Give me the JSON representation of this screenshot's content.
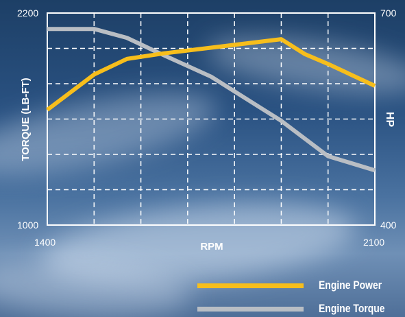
{
  "colors": {
    "power": "#f7be1c",
    "torque": "#b9bec4",
    "grid": "#ffffff",
    "sky_top": "#1d3f66"
  },
  "chart_data": {
    "type": "line",
    "title": "",
    "xlabel": "RPM",
    "ylabel": "TORQUE (LB-FT)",
    "y2label": "HP",
    "xlim": [
      1400,
      2100
    ],
    "ylim": [
      1000,
      2200
    ],
    "y2lim": [
      400,
      700
    ],
    "x_tick_labels": [
      "1400",
      "2100"
    ],
    "y_tick_labels": [
      "1000",
      "2200"
    ],
    "y2_tick_labels": [
      "400",
      "700"
    ],
    "grid": true,
    "legend_position": "bottom-right",
    "series": [
      {
        "name": "Engine Power",
        "axis": "right",
        "color": "#f7be1c",
        "x": [
          1400,
          1500,
          1570,
          1650,
          1800,
          1900,
          1950,
          2000,
          2100
        ],
        "y": [
          563,
          613,
          635,
          643,
          655,
          663,
          642,
          628,
          597
        ]
      },
      {
        "name": "Engine Torque",
        "axis": "left",
        "color": "#b9bec4",
        "x": [
          1400,
          1500,
          1570,
          1650,
          1750,
          1900,
          2000,
          2100
        ],
        "y": [
          2110,
          2110,
          2060,
          1960,
          1840,
          1590,
          1390,
          1310
        ]
      }
    ]
  },
  "legend": {
    "power_label": "Engine Power",
    "torque_label": "Engine Torque"
  }
}
